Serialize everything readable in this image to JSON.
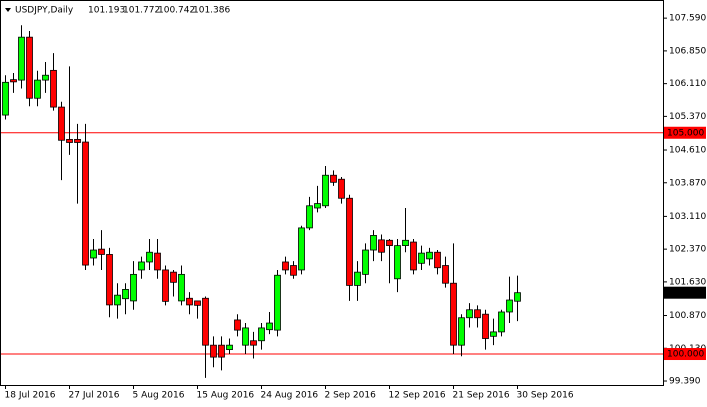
{
  "chart_data": {
    "type": "candlestick",
    "title": "USDJPY,Daily",
    "categories": [
      "18 Jul 2016",
      null,
      null,
      null,
      null,
      null,
      null,
      null,
      "27 Jul 2016",
      null,
      null,
      null,
      null,
      null,
      null,
      null,
      "5 Aug 2016",
      null,
      null,
      null,
      null,
      null,
      null,
      null,
      "15 Aug 2016",
      null,
      null,
      null,
      null,
      null,
      null,
      null,
      "24 Aug 2016",
      null,
      null,
      null,
      null,
      null,
      null,
      null,
      "2 Sep 2016",
      null,
      null,
      null,
      null,
      null,
      null,
      null,
      "12 Sep 2016",
      null,
      null,
      null,
      null,
      null,
      null,
      null,
      "21 Sep 2016",
      null,
      null,
      null,
      null,
      null,
      null,
      null,
      "30 Sep 2016"
    ],
    "open": [
      105.4,
      106.2,
      106.19,
      107.16,
      105.78,
      106.19,
      106.41,
      105.58,
      104.85,
      104.85,
      104.79,
      102.17,
      102.37,
      102.25,
      101.11,
      101.25,
      101.2,
      101.9,
      102.08,
      102.28,
      101.9,
      101.85,
      101.2,
      101.26,
      101.2,
      101.26,
      100.2,
      100.2,
      100.1,
      100.77,
      100.2,
      100.3,
      100.3,
      100.55,
      100.54,
      102.08,
      102.0,
      101.9,
      102.85,
      103.3,
      103.35,
      104.04,
      103.95,
      103.52,
      101.55,
      101.8,
      102.35,
      102.58,
      102.57,
      101.7,
      102.45,
      102.53,
      102.05,
      102.15,
      102.3,
      102.0,
      101.6,
      100.2,
      100.82,
      101.0,
      100.9,
      100.4,
      100.5,
      100.95,
      101.193
    ],
    "high": [
      106.3,
      106.35,
      107.43,
      107.3,
      106.4,
      106.6,
      106.8,
      105.7,
      106.5,
      105.2,
      105.2,
      102.6,
      102.8,
      102.4,
      101.6,
      101.6,
      102.1,
      102.2,
      102.6,
      102.6,
      102.0,
      101.9,
      102.0,
      101.4,
      101.2,
      101.3,
      100.4,
      100.4,
      100.35,
      100.9,
      100.7,
      100.5,
      100.7,
      100.95,
      101.9,
      102.2,
      102.1,
      102.9,
      103.55,
      103.8,
      104.25,
      104.15,
      104.0,
      103.6,
      102.1,
      102.5,
      102.8,
      102.7,
      102.6,
      102.6,
      103.3,
      102.6,
      102.45,
      102.4,
      102.35,
      102.2,
      102.5,
      100.9,
      101.15,
      101.1,
      101.0,
      100.8,
      101.0,
      101.75,
      101.772
    ],
    "low": [
      105.3,
      105.9,
      106.0,
      105.6,
      105.6,
      105.9,
      105.5,
      103.93,
      104.5,
      103.4,
      101.9,
      102.0,
      101.9,
      100.83,
      100.8,
      100.9,
      101.0,
      101.7,
      101.9,
      101.7,
      101.1,
      101.3,
      101.1,
      100.9,
      100.8,
      99.46,
      99.7,
      99.63,
      100.0,
      100.4,
      100.0,
      99.9,
      100.1,
      100.45,
      100.4,
      101.8,
      101.7,
      101.8,
      102.8,
      103.2,
      103.3,
      103.8,
      103.4,
      101.2,
      101.2,
      101.6,
      102.1,
      102.1,
      101.6,
      101.4,
      102.3,
      101.8,
      101.9,
      102.0,
      101.8,
      101.5,
      100.0,
      99.95,
      100.6,
      100.6,
      100.1,
      100.2,
      100.4,
      100.7,
      100.742
    ],
    "close": [
      106.14,
      106.15,
      107.16,
      105.78,
      106.19,
      106.3,
      105.58,
      104.83,
      104.78,
      104.78,
      102.01,
      102.35,
      102.25,
      101.11,
      101.33,
      101.46,
      101.8,
      102.08,
      102.3,
      101.9,
      101.19,
      101.62,
      101.8,
      101.11,
      101.1,
      100.2,
      99.93,
      99.93,
      100.2,
      100.54,
      100.59,
      100.2,
      100.59,
      100.7,
      101.78,
      101.9,
      101.78,
      102.85,
      103.35,
      103.4,
      104.04,
      103.88,
      103.52,
      101.55,
      101.85,
      102.35,
      102.68,
      102.3,
      102.45,
      102.45,
      102.57,
      101.9,
      102.28,
      102.3,
      101.95,
      101.6,
      100.2,
      100.82,
      101.0,
      100.82,
      100.35,
      100.5,
      100.95,
      101.22,
      101.386
    ],
    "up_color": "#00ff00",
    "down_color": "#ff0000",
    "ylim": [
      99.3,
      108.0
    ],
    "yticks": [
      {
        "value": 107.59,
        "label": "107.590"
      },
      {
        "value": 106.85,
        "label": "106.850"
      },
      {
        "value": 106.11,
        "label": "106.110"
      },
      {
        "value": 105.37,
        "label": "105.370"
      },
      {
        "value": 104.61,
        "label": "104.610"
      },
      {
        "value": 103.87,
        "label": "103.870"
      },
      {
        "value": 103.11,
        "label": "103.110"
      },
      {
        "value": 102.37,
        "label": "102.370"
      },
      {
        "value": 101.63,
        "label": "101.630"
      },
      {
        "value": 100.87,
        "label": "100.870"
      },
      {
        "value": 100.13,
        "label": "100.130"
      },
      {
        "value": 99.39,
        "label": "99.390"
      }
    ],
    "hlines": [
      {
        "value": 105,
        "label": "105.000"
      },
      {
        "value": 100,
        "label": "100.000"
      }
    ],
    "hline_color": "#ff0000"
  }
}
